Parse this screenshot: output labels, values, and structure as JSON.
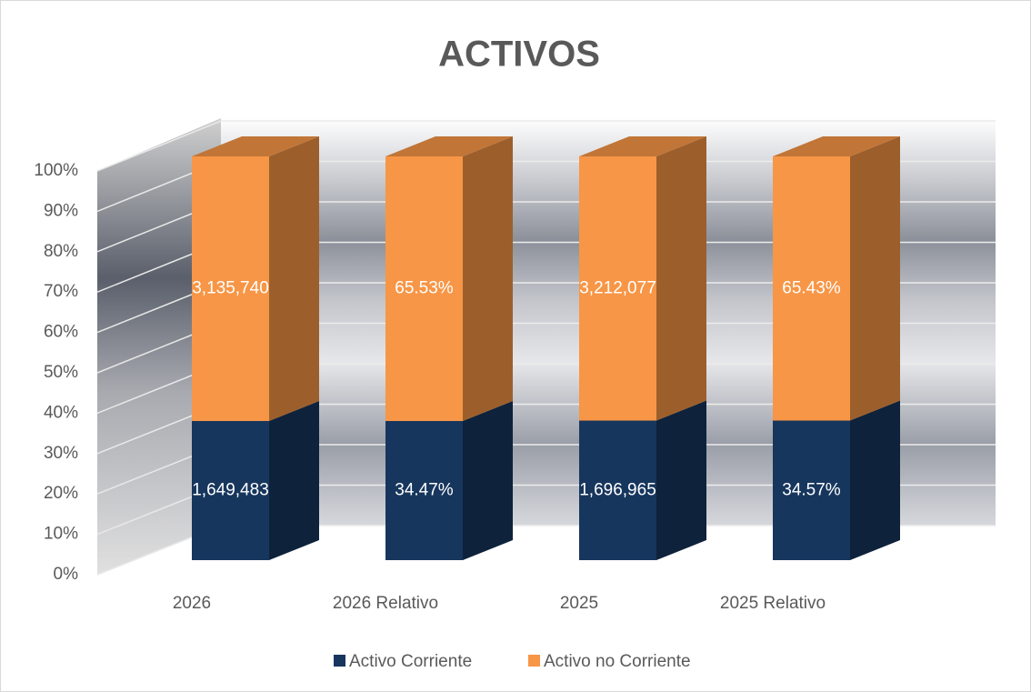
{
  "chart_data": {
    "type": "bar",
    "stacked": "percent",
    "title": "ACTIVOS",
    "categories": [
      "2026",
      "2026 Relativo",
      "2025",
      "2025 Relativo"
    ],
    "series": [
      {
        "name": "Activo Corriente",
        "color": "#17365d",
        "values": [
          1649483,
          34.47,
          1696965,
          34.57
        ],
        "value_labels": [
          "1,649,483",
          "34.47%",
          "1,696,965",
          "34.57%"
        ]
      },
      {
        "name": "Activo no Corriente",
        "color": "#f79646",
        "values": [
          3135740,
          65.53,
          3212077,
          65.43
        ],
        "value_labels": [
          "3,135,740",
          "65.53%",
          "3,212,077",
          "65.43%"
        ]
      }
    ],
    "ylim": [
      0,
      100
    ],
    "yticks": [
      {
        "value": 0,
        "label": "0%"
      },
      {
        "value": 10,
        "label": "10%"
      },
      {
        "value": 20,
        "label": "20%"
      },
      {
        "value": 30,
        "label": "30%"
      },
      {
        "value": 40,
        "label": "40%"
      },
      {
        "value": 50,
        "label": "50%"
      },
      {
        "value": 60,
        "label": "60%"
      },
      {
        "value": 70,
        "label": "70%"
      },
      {
        "value": 80,
        "label": "80%"
      },
      {
        "value": 90,
        "label": "90%"
      },
      {
        "value": 100,
        "label": "100%"
      }
    ],
    "grid": true,
    "legend": "bottom"
  }
}
